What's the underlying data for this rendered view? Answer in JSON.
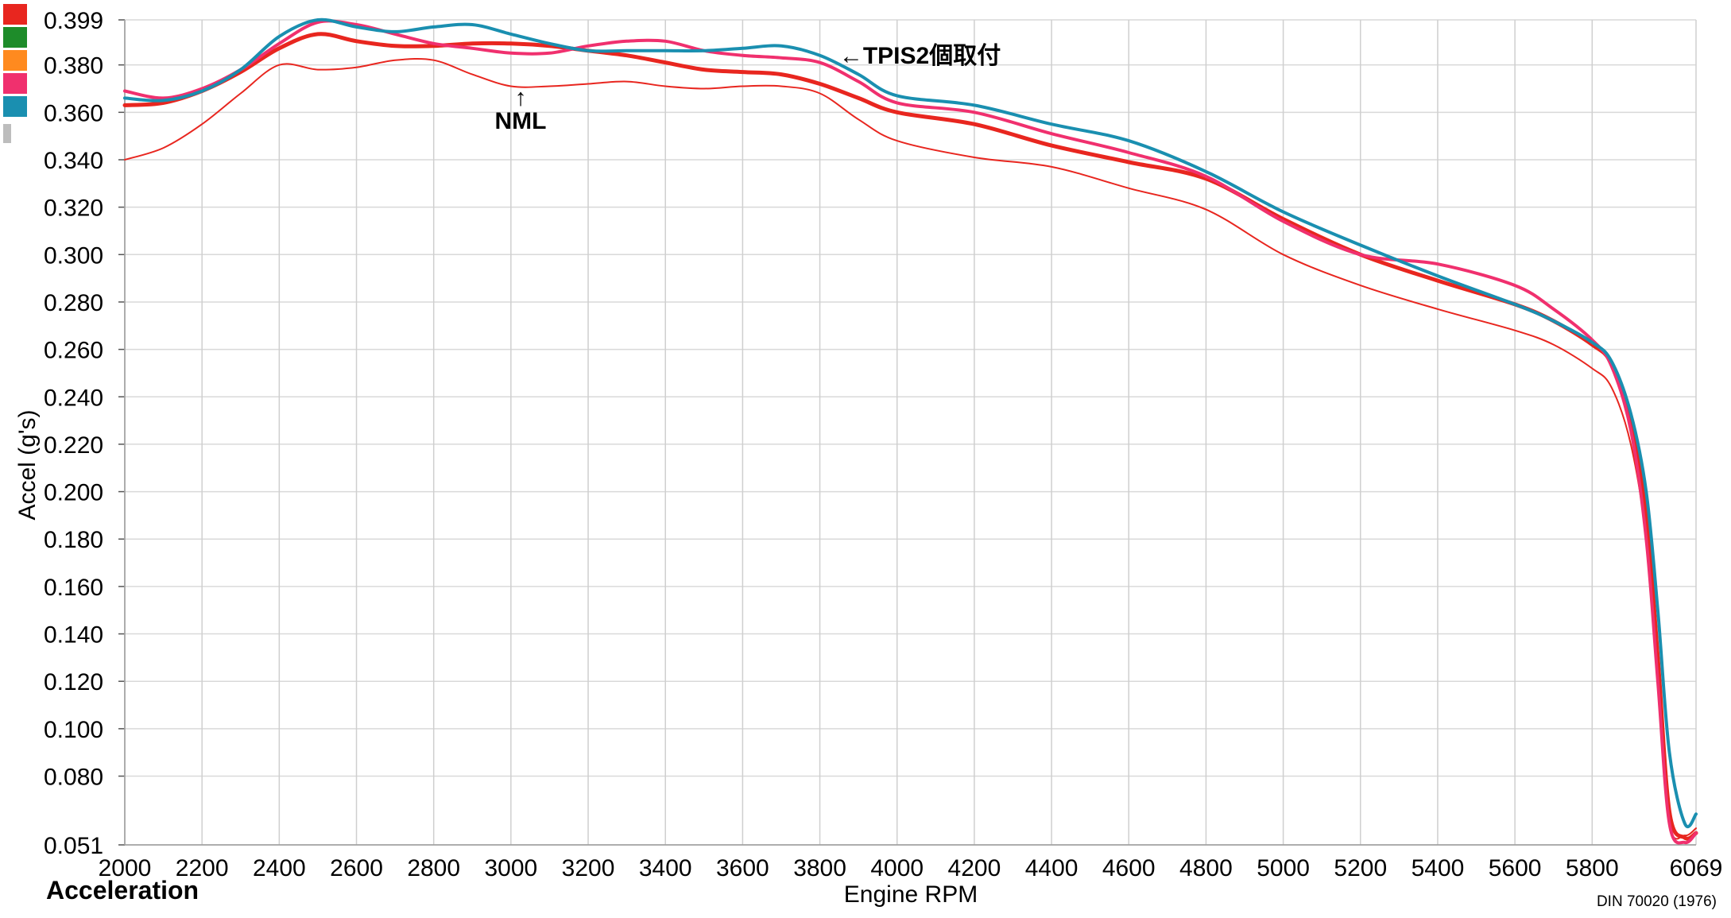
{
  "chart_data": {
    "type": "line",
    "panel_title": "Acceleration",
    "xlabel": "Engine RPM",
    "ylabel": "Accel (g's)",
    "footnote": "DIN 70020 (1976)",
    "xlim": [
      2000,
      6069
    ],
    "ylim": [
      0.051,
      0.399
    ],
    "x_ticks": [
      "2000",
      "2200",
      "2400",
      "2600",
      "2800",
      "3000",
      "3200",
      "3400",
      "3600",
      "3800",
      "4000",
      "4200",
      "4400",
      "4600",
      "4800",
      "5000",
      "5200",
      "5400",
      "5600",
      "5800",
      "6069"
    ],
    "y_ticks": [
      "0.399",
      "0.380",
      "0.360",
      "0.340",
      "0.320",
      "0.300",
      "0.280",
      "0.260",
      "0.240",
      "0.220",
      "0.200",
      "0.180",
      "0.160",
      "0.140",
      "0.120",
      "0.100",
      "0.080",
      "0.051"
    ],
    "grid": true,
    "legend_swatches": [
      "#e8261f",
      "#1e8c2a",
      "#ff8a1f",
      "#f0306e",
      "#1a8fb0"
    ],
    "annotations": [
      {
        "text": "←TPIS2個取付",
        "x": 3850,
        "y": 0.3805
      },
      {
        "text": "↑",
        "x": 3025,
        "y": 0.363
      },
      {
        "text": "NML",
        "x": 3025,
        "y": 0.353
      }
    ],
    "series": [
      {
        "color": "#e8261f",
        "width": 2,
        "x": [
          2000,
          2100,
          2200,
          2300,
          2400,
          2500,
          2600,
          2700,
          2800,
          2900,
          3000,
          3100,
          3200,
          3300,
          3400,
          3500,
          3600,
          3700,
          3800,
          3900,
          4000,
          4200,
          4400,
          4600,
          4800,
          5000,
          5200,
          5400,
          5600,
          5700,
          5800,
          5850,
          5900,
          5940,
          5970,
          6000,
          6040,
          6069
        ],
        "y": [
          0.34,
          0.345,
          0.355,
          0.368,
          0.38,
          0.378,
          0.379,
          0.382,
          0.382,
          0.376,
          0.371,
          0.371,
          0.372,
          0.373,
          0.371,
          0.37,
          0.371,
          0.371,
          0.368,
          0.357,
          0.348,
          0.341,
          0.337,
          0.328,
          0.319,
          0.3,
          0.287,
          0.277,
          0.268,
          0.262,
          0.252,
          0.244,
          0.22,
          0.18,
          0.12,
          0.06,
          0.055,
          0.058
        ]
      },
      {
        "color": "#e8261f",
        "width": 5,
        "x": [
          2000,
          2100,
          2200,
          2300,
          2400,
          2500,
          2600,
          2700,
          2800,
          2900,
          3000,
          3100,
          3200,
          3300,
          3400,
          3500,
          3600,
          3700,
          3800,
          3900,
          4000,
          4200,
          4400,
          4600,
          4800,
          5000,
          5200,
          5400,
          5600,
          5700,
          5800,
          5850,
          5900,
          5940,
          5970,
          6000,
          6040,
          6069
        ],
        "y": [
          0.363,
          0.364,
          0.369,
          0.377,
          0.387,
          0.393,
          0.39,
          0.388,
          0.388,
          0.389,
          0.389,
          0.388,
          0.386,
          0.384,
          0.381,
          0.378,
          0.377,
          0.376,
          0.372,
          0.366,
          0.36,
          0.355,
          0.346,
          0.339,
          0.332,
          0.315,
          0.3,
          0.289,
          0.279,
          0.272,
          0.262,
          0.254,
          0.23,
          0.19,
          0.13,
          0.065,
          0.054,
          0.056
        ]
      },
      {
        "color": "#f0306e",
        "width": 4,
        "x": [
          2000,
          2100,
          2200,
          2300,
          2400,
          2500,
          2600,
          2700,
          2800,
          2900,
          3000,
          3100,
          3200,
          3300,
          3400,
          3500,
          3600,
          3700,
          3800,
          3900,
          4000,
          4200,
          4400,
          4600,
          4800,
          5000,
          5200,
          5400,
          5600,
          5700,
          5800,
          5850,
          5900,
          5940,
          5970,
          6000,
          6040,
          6069
        ],
        "y": [
          0.369,
          0.366,
          0.37,
          0.378,
          0.389,
          0.398,
          0.397,
          0.393,
          0.389,
          0.387,
          0.385,
          0.385,
          0.388,
          0.39,
          0.39,
          0.386,
          0.384,
          0.383,
          0.381,
          0.373,
          0.364,
          0.36,
          0.351,
          0.343,
          0.333,
          0.314,
          0.3,
          0.296,
          0.287,
          0.277,
          0.264,
          0.253,
          0.226,
          0.18,
          0.12,
          0.06,
          0.052,
          0.056
        ]
      },
      {
        "color": "#1a8fb0",
        "width": 4,
        "x": [
          2000,
          2100,
          2200,
          2300,
          2400,
          2500,
          2600,
          2700,
          2800,
          2900,
          3000,
          3100,
          3200,
          3300,
          3400,
          3500,
          3600,
          3700,
          3800,
          3900,
          4000,
          4200,
          4400,
          4600,
          4800,
          5000,
          5200,
          5400,
          5600,
          5700,
          5800,
          5850,
          5900,
          5940,
          5970,
          6000,
          6040,
          6069
        ],
        "y": [
          0.366,
          0.365,
          0.369,
          0.378,
          0.392,
          0.399,
          0.396,
          0.394,
          0.396,
          0.397,
          0.393,
          0.389,
          0.386,
          0.386,
          0.386,
          0.386,
          0.387,
          0.388,
          0.384,
          0.376,
          0.367,
          0.363,
          0.355,
          0.348,
          0.335,
          0.318,
          0.304,
          0.291,
          0.279,
          0.272,
          0.263,
          0.255,
          0.233,
          0.2,
          0.15,
          0.09,
          0.06,
          0.064
        ]
      }
    ]
  }
}
